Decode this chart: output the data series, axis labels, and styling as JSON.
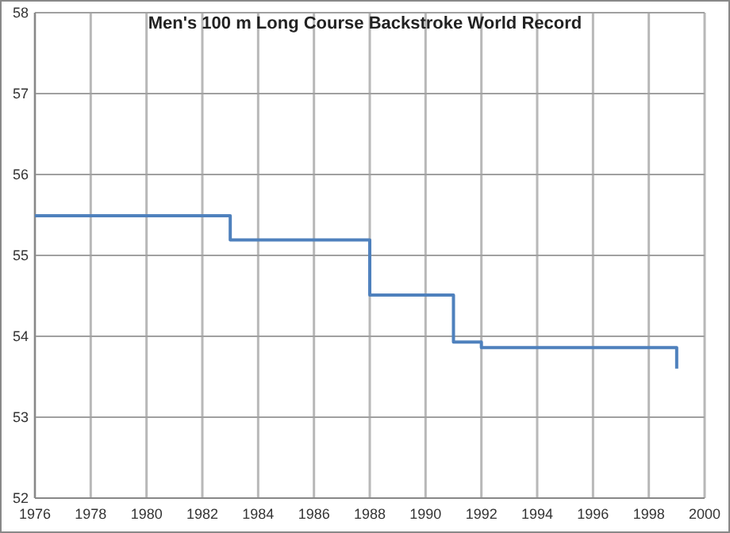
{
  "chart_data": {
    "type": "step",
    "title": "Men's 100 m Long Course Backstroke World Record",
    "x": [
      1976,
      1983,
      1988,
      1991,
      1992,
      1999
    ],
    "series": [
      {
        "color": "#4f81bd",
        "values": [
          55.49,
          55.19,
          54.51,
          53.93,
          53.86,
          53.6
        ]
      }
    ],
    "xlim": [
      1976,
      2000
    ],
    "xticks": [
      1976,
      1978,
      1980,
      1982,
      1984,
      1986,
      1988,
      1990,
      1992,
      1994,
      1996,
      1998,
      2000
    ],
    "ylim": [
      52,
      58
    ],
    "yticks": [
      52,
      53,
      54,
      55,
      56,
      57,
      58
    ],
    "grid": true
  }
}
